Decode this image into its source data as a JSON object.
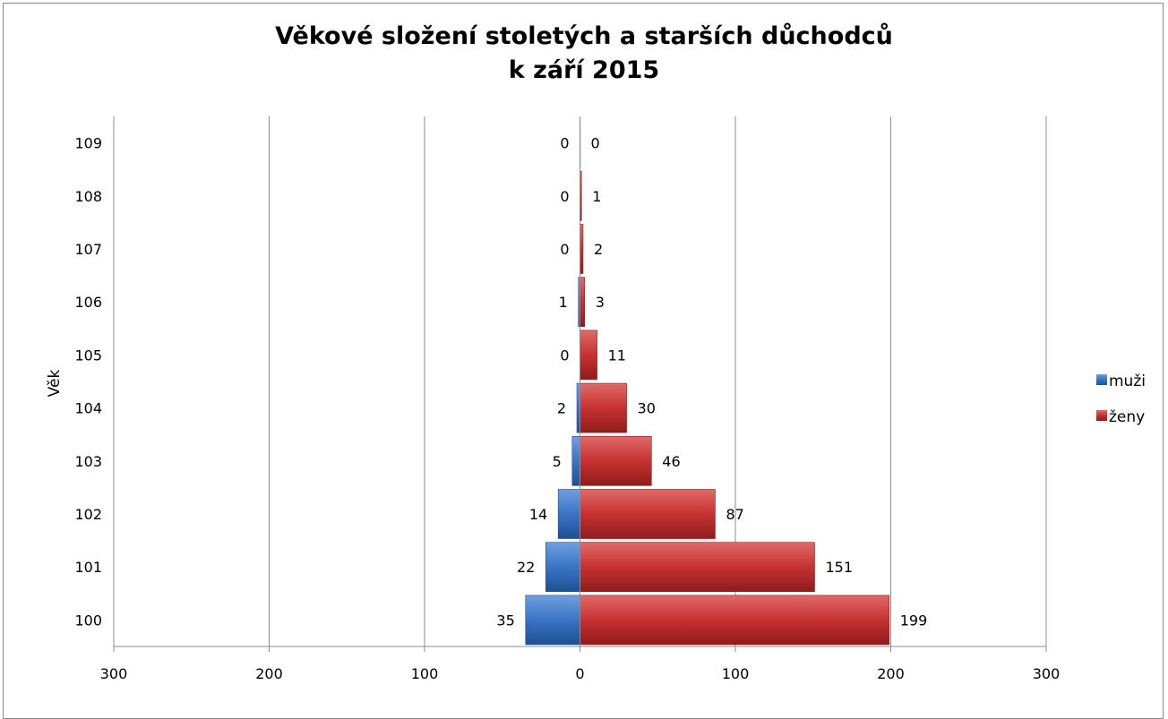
{
  "chart_data": {
    "type": "bar",
    "orientation": "horizontal",
    "title": [
      "Věkové složení stoletých a starších důchodců",
      "k září 2015"
    ],
    "ylabel": "Věk",
    "xlabel": "",
    "categories": [
      "100",
      "101",
      "102",
      "103",
      "104",
      "105",
      "106",
      "107",
      "108",
      "109"
    ],
    "series": [
      {
        "name": "muži",
        "values": [
          35,
          22,
          14,
          5,
          2,
          0,
          1,
          0,
          0,
          0
        ],
        "direction": "left",
        "color": "#3a74c4"
      },
      {
        "name": "ženy",
        "values": [
          199,
          151,
          87,
          46,
          30,
          11,
          3,
          2,
          1,
          0
        ],
        "direction": "right",
        "color": "#c63231"
      }
    ],
    "xlim": [
      -300,
      300
    ],
    "xticks": [
      -300,
      -200,
      -100,
      0,
      100,
      200,
      300
    ],
    "xtick_labels": [
      "300",
      "200",
      "100",
      "0",
      "100",
      "200",
      "300"
    ],
    "grid": "vertical",
    "legend_position": "right",
    "data_labels": true
  }
}
